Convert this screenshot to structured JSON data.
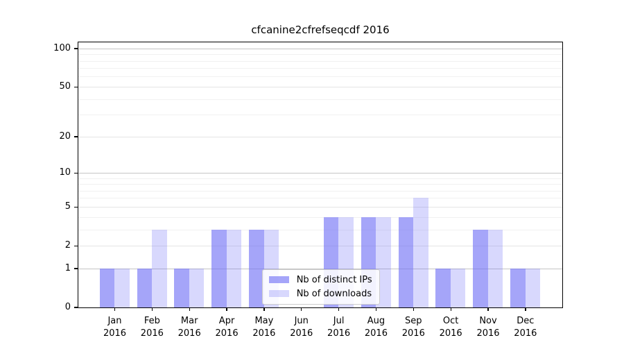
{
  "chart_data": {
    "type": "bar",
    "title": "cfcanine2cfrefseqcdf 2016",
    "categories": [
      "Jan",
      "Feb",
      "Mar",
      "Apr",
      "May",
      "Jun",
      "Jul",
      "Aug",
      "Sep",
      "Oct",
      "Nov",
      "Dec"
    ],
    "category_sub_label": "2016",
    "series": [
      {
        "name": "Nb of distinct IPs",
        "color": "#a6a6f7",
        "rgba": "rgba(112,112,246,0.63)",
        "values": [
          1,
          1,
          1,
          3,
          3,
          0,
          4,
          4,
          4,
          1,
          3,
          1
        ]
      },
      {
        "name": "Nb of downloads",
        "color": "#d9d9fb",
        "rgba": "rgba(112,112,246,0.27)",
        "values": [
          1,
          3,
          1,
          3,
          3,
          0,
          4,
          4,
          6,
          1,
          3,
          1
        ]
      }
    ],
    "xlabel": "",
    "ylabel": "",
    "y_axis": {
      "scale": "log1p",
      "tick_labels": [
        "0",
        "1",
        "2",
        "5",
        "10",
        "20",
        "50",
        "100"
      ],
      "tick_values": [
        0,
        1,
        2,
        5,
        10,
        20,
        50,
        100
      ],
      "minor_gridline_values": [
        3,
        4,
        6,
        7,
        8,
        9,
        30,
        40,
        60,
        70,
        80,
        90
      ],
      "range_max": 110
    },
    "grid": "on",
    "gridline_colors": {
      "power10": "#c4c4c4",
      "major": "#e4e4e4",
      "minor": "#f1f1f1"
    },
    "legend": {
      "position": "lower-center",
      "entries": [
        "Nb of distinct IPs",
        "Nb of downloads"
      ]
    }
  }
}
